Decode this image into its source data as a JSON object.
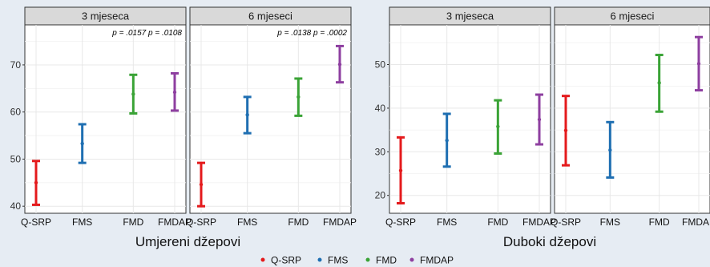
{
  "colors": {
    "Q-SRP": "#e41a1c",
    "FMS": "#1f6fb2",
    "FMD": "#3aa336",
    "FMDAP": "#8e3fa0",
    "strip": "#d9d9d9",
    "grid": "#e8e8e8"
  },
  "legend": [
    "Q-SRP",
    "FMS",
    "FMD",
    "FMDAP"
  ],
  "chart_data": [
    {
      "type": "errorbar",
      "group_title": "Umjereni džepovi",
      "yticks": [
        40,
        50,
        60,
        70
      ],
      "ylim": [
        38.5,
        78.5
      ],
      "grid": true,
      "panels": [
        {
          "strip": "3 mjeseca",
          "annotation": [
            "p = .0157",
            "p = .0108"
          ],
          "categories": [
            "Q-SRP",
            "FMS",
            "FMD",
            "FMDAP"
          ],
          "series": [
            {
              "name": "Q-SRP",
              "mean": 45.0,
              "lower": 40.3,
              "upper": 49.6
            },
            {
              "name": "FMS",
              "mean": 53.3,
              "lower": 49.2,
              "upper": 57.4
            },
            {
              "name": "FMD",
              "mean": 63.8,
              "lower": 59.7,
              "upper": 67.9
            },
            {
              "name": "FMDAP",
              "mean": 64.2,
              "lower": 60.3,
              "upper": 68.2
            }
          ]
        },
        {
          "strip": "6 mjeseci",
          "annotation": [
            "p = .0138",
            "p = .0002"
          ],
          "categories": [
            "Q-SRP",
            "FMS",
            "FMD",
            "FMDAP"
          ],
          "series": [
            {
              "name": "Q-SRP",
              "mean": 44.6,
              "lower": 40.0,
              "upper": 49.2
            },
            {
              "name": "FMS",
              "mean": 59.4,
              "lower": 55.5,
              "upper": 63.2
            },
            {
              "name": "FMD",
              "mean": 63.2,
              "lower": 59.2,
              "upper": 67.1
            },
            {
              "name": "FMDAP",
              "mean": 70.1,
              "lower": 66.3,
              "upper": 74.0
            }
          ]
        }
      ]
    },
    {
      "type": "errorbar",
      "group_title": "Duboki džepovi",
      "yticks": [
        20,
        30,
        40,
        50
      ],
      "ylim": [
        15.9,
        59.1
      ],
      "grid": true,
      "panels": [
        {
          "strip": "3 mjeseca",
          "categories": [
            "Q-SRP",
            "FMS",
            "FMD",
            "FMDAP"
          ],
          "series": [
            {
              "name": "Q-SRP",
              "mean": 25.7,
              "lower": 18.2,
              "upper": 33.3
            },
            {
              "name": "FMS",
              "mean": 32.6,
              "lower": 26.6,
              "upper": 38.7
            },
            {
              "name": "FMD",
              "mean": 35.8,
              "lower": 29.6,
              "upper": 41.8
            },
            {
              "name": "FMDAP",
              "mean": 37.4,
              "lower": 31.7,
              "upper": 43.1
            }
          ]
        },
        {
          "strip": "6 mjeseci",
          "categories": [
            "Q-SRP",
            "FMS",
            "FMD",
            "FMDAP"
          ],
          "series": [
            {
              "name": "Q-SRP",
              "mean": 34.9,
              "lower": 26.9,
              "upper": 42.8
            },
            {
              "name": "FMS",
              "mean": 30.4,
              "lower": 24.1,
              "upper": 36.8
            },
            {
              "name": "FMD",
              "mean": 45.8,
              "lower": 39.2,
              "upper": 52.2
            },
            {
              "name": "FMDAP",
              "mean": 50.2,
              "lower": 44.1,
              "upper": 56.3
            }
          ]
        }
      ]
    }
  ]
}
